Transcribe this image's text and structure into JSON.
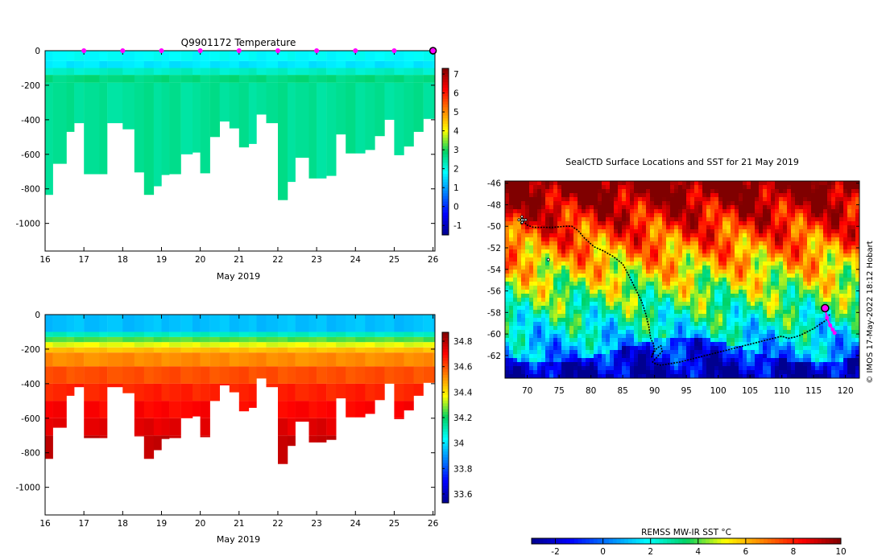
{
  "colors": {
    "magenta": "#ff00ff",
    "background": "#ffffff",
    "axis": "#000000"
  },
  "chart_data": [
    {
      "id": "temperature-profile",
      "type": "heatmap",
      "title": "Q9901172  Temperature",
      "xlabel": "May 2019",
      "ylabel": "",
      "xlim": [
        16,
        26.05
      ],
      "ylim": [
        -1160,
        0
      ],
      "x_ticks": [
        "16",
        "17",
        "18",
        "19",
        "20",
        "21",
        "22",
        "23",
        "24",
        "25",
        "26"
      ],
      "y_ticks": [
        "0",
        "-200",
        "-400",
        "-600",
        "-800",
        "-1000"
      ],
      "colorbar": {
        "min": -1.5,
        "max": 7.3,
        "ticks": [
          "-1",
          "0",
          "1",
          "2",
          "3",
          "4",
          "5",
          "6",
          "7"
        ],
        "colormap": "jet"
      },
      "surface_markers_days": [
        17,
        18,
        19,
        20,
        21,
        22,
        23,
        24,
        25
      ],
      "current_marker_day": 26,
      "profiles": {
        "x_start": [
          16,
          16.2,
          16.55,
          16.75,
          17,
          17.4,
          17.6,
          18,
          18.3,
          18.55,
          18.8,
          19,
          19.2,
          19.5,
          19.8,
          20,
          20.25,
          20.5,
          20.75,
          21,
          21.25,
          21.45,
          21.7,
          22,
          22.25,
          22.45,
          22.8,
          23,
          23.25,
          23.5,
          23.75,
          24,
          24.25,
          24.5,
          24.75,
          25,
          25.25,
          25.5,
          25.75,
          26
        ],
        "max_depth": [
          835,
          655,
          470,
          420,
          715,
          715,
          420,
          455,
          705,
          835,
          785,
          720,
          715,
          600,
          590,
          710,
          500,
          410,
          450,
          560,
          540,
          370,
          420,
          865,
          760,
          620,
          740,
          740,
          725,
          485,
          595,
          595,
          575,
          495,
          400,
          605,
          555,
          470,
          395,
          395
        ]
      },
      "temperature_layers": [
        {
          "top": 0,
          "bottom": 60,
          "value": 1.8
        },
        {
          "top": 60,
          "bottom": 100,
          "value": 1.6
        },
        {
          "top": 100,
          "bottom": 140,
          "value": 2.2
        },
        {
          "top": 140,
          "bottom": 185,
          "value": 2.7
        },
        {
          "top": 185,
          "bottom": 1200,
          "value": 2.55
        }
      ]
    },
    {
      "id": "salinity-profile",
      "type": "heatmap",
      "title": "",
      "xlabel": "May 2019",
      "ylabel": "",
      "xlim": [
        16,
        26.05
      ],
      "ylim": [
        -1160,
        0
      ],
      "x_ticks": [
        "16",
        "17",
        "18",
        "19",
        "20",
        "21",
        "22",
        "23",
        "24",
        "25",
        "26"
      ],
      "y_ticks": [
        "0",
        "-200",
        "-400",
        "-600",
        "-800",
        "-1000"
      ],
      "colorbar": {
        "min": 33.53,
        "max": 34.87,
        "ticks": [
          "33.6",
          "33.8",
          "34",
          "34.2",
          "34.4",
          "34.6",
          "34.8"
        ],
        "colormap": "jet"
      },
      "salinity_layers": [
        {
          "top": 0,
          "bottom": 100,
          "value": 33.95
        },
        {
          "top": 100,
          "bottom": 130,
          "value": 34.1
        },
        {
          "top": 130,
          "bottom": 160,
          "value": 34.25
        },
        {
          "top": 160,
          "bottom": 190,
          "value": 34.35
        },
        {
          "top": 190,
          "bottom": 220,
          "value": 34.45
        },
        {
          "top": 220,
          "bottom": 300,
          "value": 34.52
        },
        {
          "top": 300,
          "bottom": 400,
          "value": 34.6
        },
        {
          "top": 400,
          "bottom": 500,
          "value": 34.66
        },
        {
          "top": 500,
          "bottom": 600,
          "value": 34.7
        },
        {
          "top": 600,
          "bottom": 700,
          "value": 34.74
        },
        {
          "top": 700,
          "bottom": 1200,
          "value": 34.78
        }
      ]
    },
    {
      "id": "sst-map",
      "type": "heatmap",
      "title": "SealCTD Surface Locations and SST for 21 May 2019",
      "xlabel": "",
      "ylabel": "",
      "xlim": [
        66.5,
        122.2
      ],
      "ylim": [
        -64.1,
        -45.8
      ],
      "x_ticks": [
        "70",
        "75",
        "80",
        "85",
        "90",
        "95",
        "100",
        "105",
        "110",
        "115",
        "120"
      ],
      "y_ticks": [
        "-46",
        "-48",
        "-50",
        "-52",
        "-54",
        "-56",
        "-58",
        "-60",
        "-62"
      ],
      "colorbar": {
        "label": "REMSS MW-IR SST °C",
        "min": -3,
        "max": 10,
        "ticks": [
          "-2",
          "0",
          "2",
          "4",
          "6",
          "8",
          "10"
        ],
        "colormap": "jet"
      },
      "track": {
        "lon": [
          69,
          70,
          71,
          72,
          74,
          76,
          77,
          78,
          79,
          80.5,
          82,
          83.5,
          85,
          86,
          87,
          88,
          88.6,
          89.1,
          89.4,
          89.8,
          90,
          89.7,
          89.5,
          89.9,
          90.4,
          91,
          91.2,
          90.6,
          90,
          89.7,
          90.2,
          91,
          92,
          94,
          96,
          98,
          100,
          102,
          104,
          106,
          108,
          110,
          111,
          112,
          113,
          114,
          115,
          116,
          117,
          117.5
        ],
        "lat": [
          -49.3,
          -49.9,
          -50.1,
          -50.1,
          -50.1,
          -50,
          -50,
          -50.4,
          -51.1,
          -51.9,
          -52.3,
          -52.8,
          -53.5,
          -54.6,
          -55.8,
          -57,
          -58.1,
          -59.3,
          -60.4,
          -60.9,
          -61.4,
          -61.8,
          -62.2,
          -61.7,
          -61.3,
          -61.1,
          -61.6,
          -62,
          -62.4,
          -62.6,
          -62.8,
          -62.9,
          -62.8,
          -62.6,
          -62.3,
          -62,
          -61.7,
          -61.4,
          -61.1,
          -60.8,
          -60.5,
          -60.2,
          -60.4,
          -60.3,
          -60.1,
          -59.8,
          -59.5,
          -59.1,
          -58.7,
          -58.2
        ]
      },
      "start_cluster": {
        "lon": 69.2,
        "lat": -49.4
      },
      "outlier_point": {
        "lon": 73.3,
        "lat": -53.1
      },
      "recent_track": {
        "lon": [
          116.8,
          117.1,
          117.6,
          118,
          118.3
        ],
        "lat": [
          -57.6,
          -58.5,
          -59.2,
          -59.6,
          -59.9
        ]
      },
      "current_position": {
        "lon": 116.8,
        "lat": -57.6
      }
    }
  ],
  "side_note": "© IMOS 17-May-2022 18:12 Hobart"
}
